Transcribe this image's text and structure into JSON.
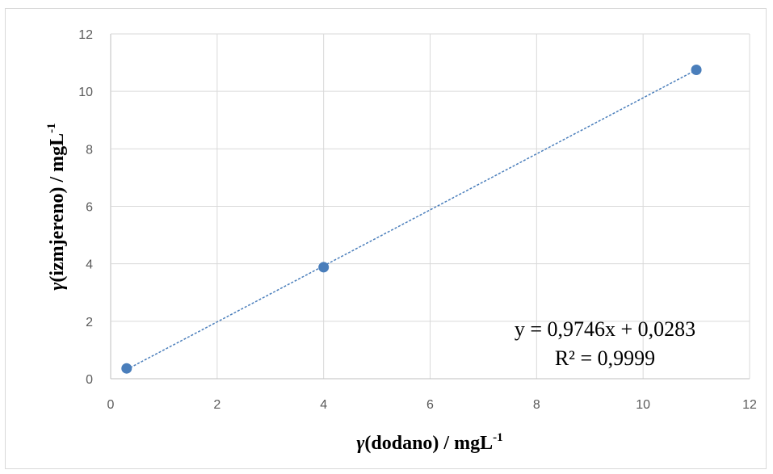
{
  "chart_data": {
    "type": "scatter",
    "x": [
      0.3,
      4,
      11
    ],
    "y": [
      0.36,
      3.88,
      10.75
    ],
    "xlim": [
      0,
      12
    ],
    "ylim": [
      0,
      12
    ],
    "xticks": [
      "0",
      "2",
      "4",
      "6",
      "8",
      "10",
      "12"
    ],
    "yticks": [
      "0",
      "2",
      "4",
      "6",
      "8",
      "10",
      "12"
    ],
    "grid": true,
    "legend": "none",
    "xlabel": {
      "symbol": "γ",
      "text": "(dodano) / mgL",
      "sup": "-1"
    },
    "ylabel": {
      "symbol": "γ",
      "text": "(izmjereno) / mgL",
      "sup": "-1"
    },
    "trendline": {
      "type": "linear",
      "slope": 0.9746,
      "intercept": 0.0283,
      "equation": "y = 0,9746x + 0,0283",
      "r_squared": "R² = 0,9999",
      "style": "dashed"
    },
    "colors": {
      "marker": "#4a7ebb",
      "line": "#4a7ebb",
      "grid": "#d9d9d9",
      "axis": "#bfbfbf"
    }
  }
}
